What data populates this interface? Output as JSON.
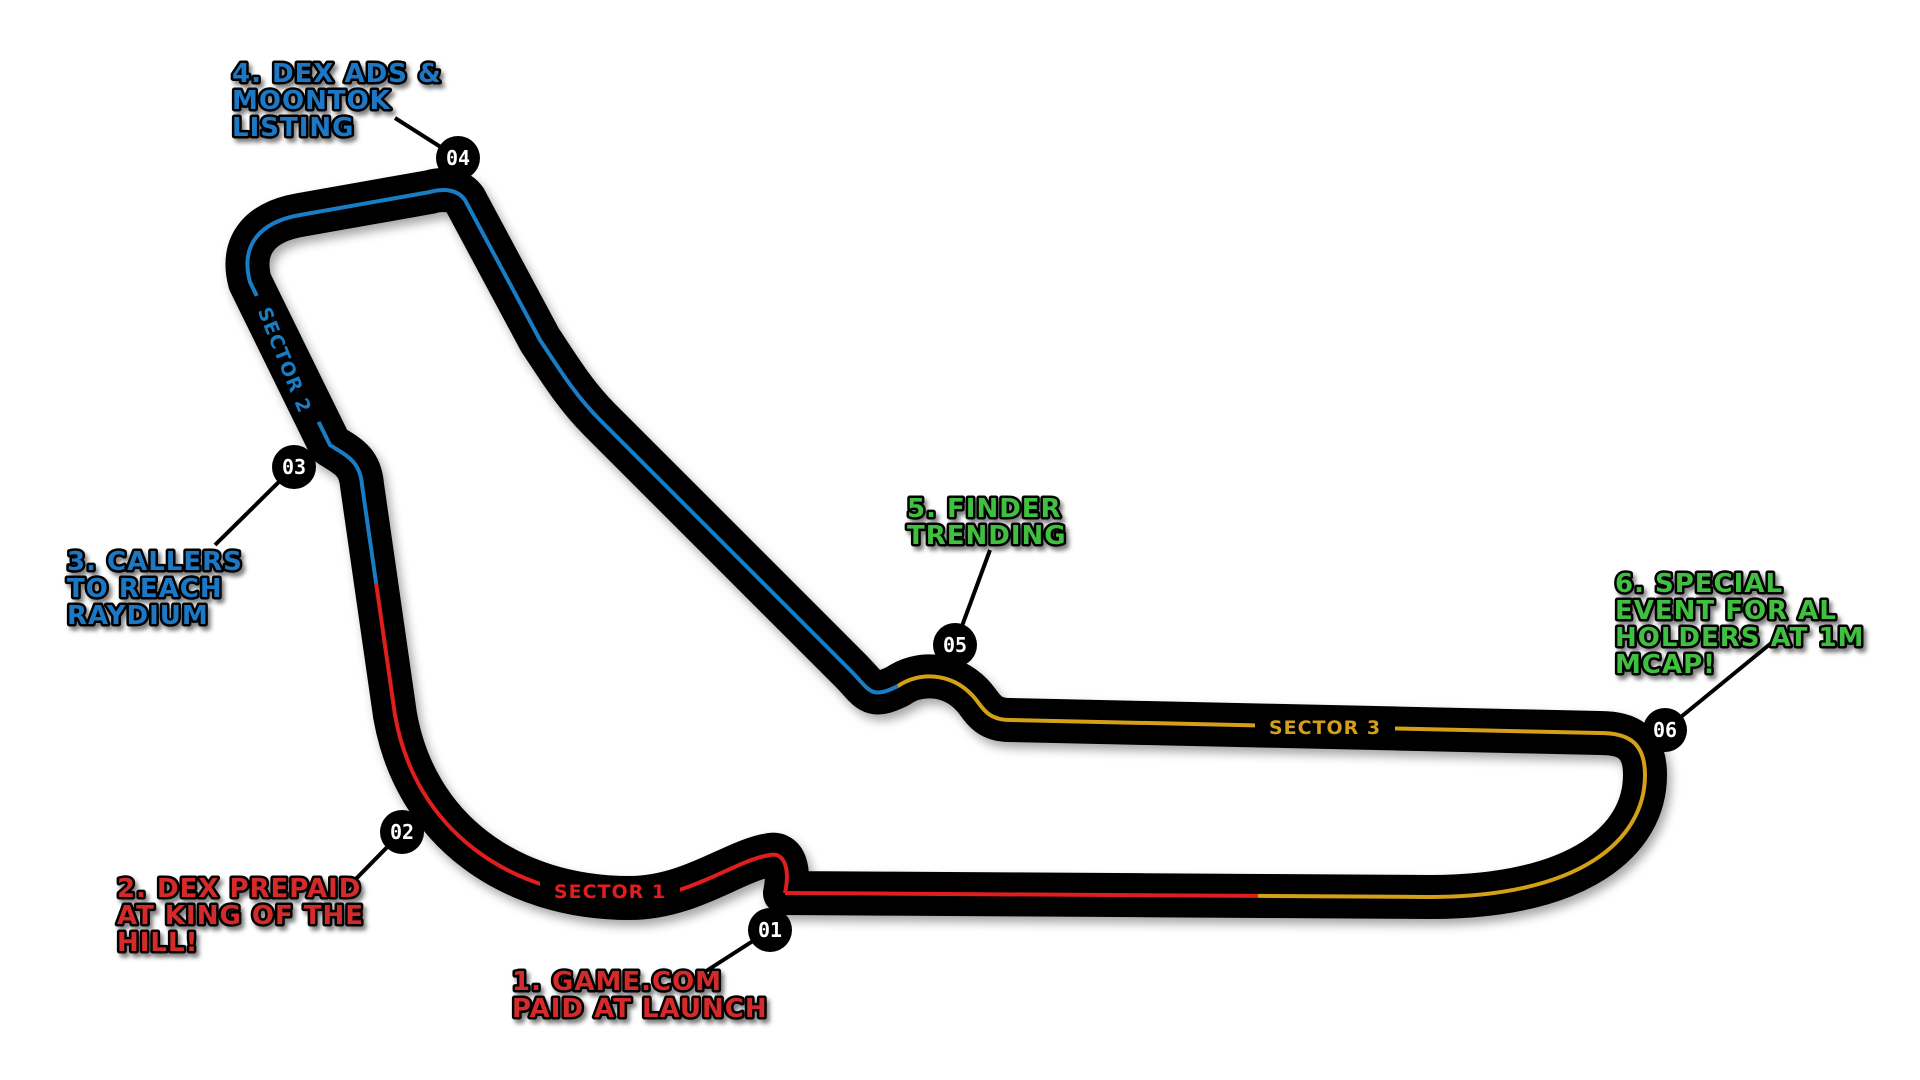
{
  "colors": {
    "track": "#000000",
    "sector1": "#e01e1e",
    "sector2": "#1a7dc4",
    "sector3": "#d4a017",
    "label_red": "#d42c2c",
    "label_blue": "#1c78c4",
    "label_green": "#3fbf3f"
  },
  "sectors": {
    "s1": "SECTOR 1",
    "s2": "SECTOR 2",
    "s3": "SECTOR 3"
  },
  "markers": [
    {
      "id": "m1",
      "label": "01"
    },
    {
      "id": "m2",
      "label": "02"
    },
    {
      "id": "m3",
      "label": "03"
    },
    {
      "id": "m4",
      "label": "04"
    },
    {
      "id": "m5",
      "label": "05"
    },
    {
      "id": "m6",
      "label": "06"
    }
  ],
  "callouts": {
    "c1": {
      "lines": [
        "1. GAME.COM",
        "PAID AT LAUNCH"
      ],
      "color": "red"
    },
    "c2": {
      "lines": [
        "2. DEX PREPAID",
        "AT KING OF THE",
        "HILL!"
      ],
      "color": "red"
    },
    "c3": {
      "lines": [
        "3. CALLERS",
        "TO REACH",
        "RAYDIUM"
      ],
      "color": "blue"
    },
    "c4": {
      "lines": [
        "4. DEX ADS &",
        "MOONTOK",
        "LISTING"
      ],
      "color": "blue"
    },
    "c5": {
      "lines": [
        "5. FINDER",
        "TRENDING"
      ],
      "color": "green"
    },
    "c6": {
      "lines": [
        "6. SPECIAL",
        "EVENT FOR AL",
        "HOLDERS AT 1M",
        "MCAP!"
      ],
      "color": "green"
    }
  }
}
